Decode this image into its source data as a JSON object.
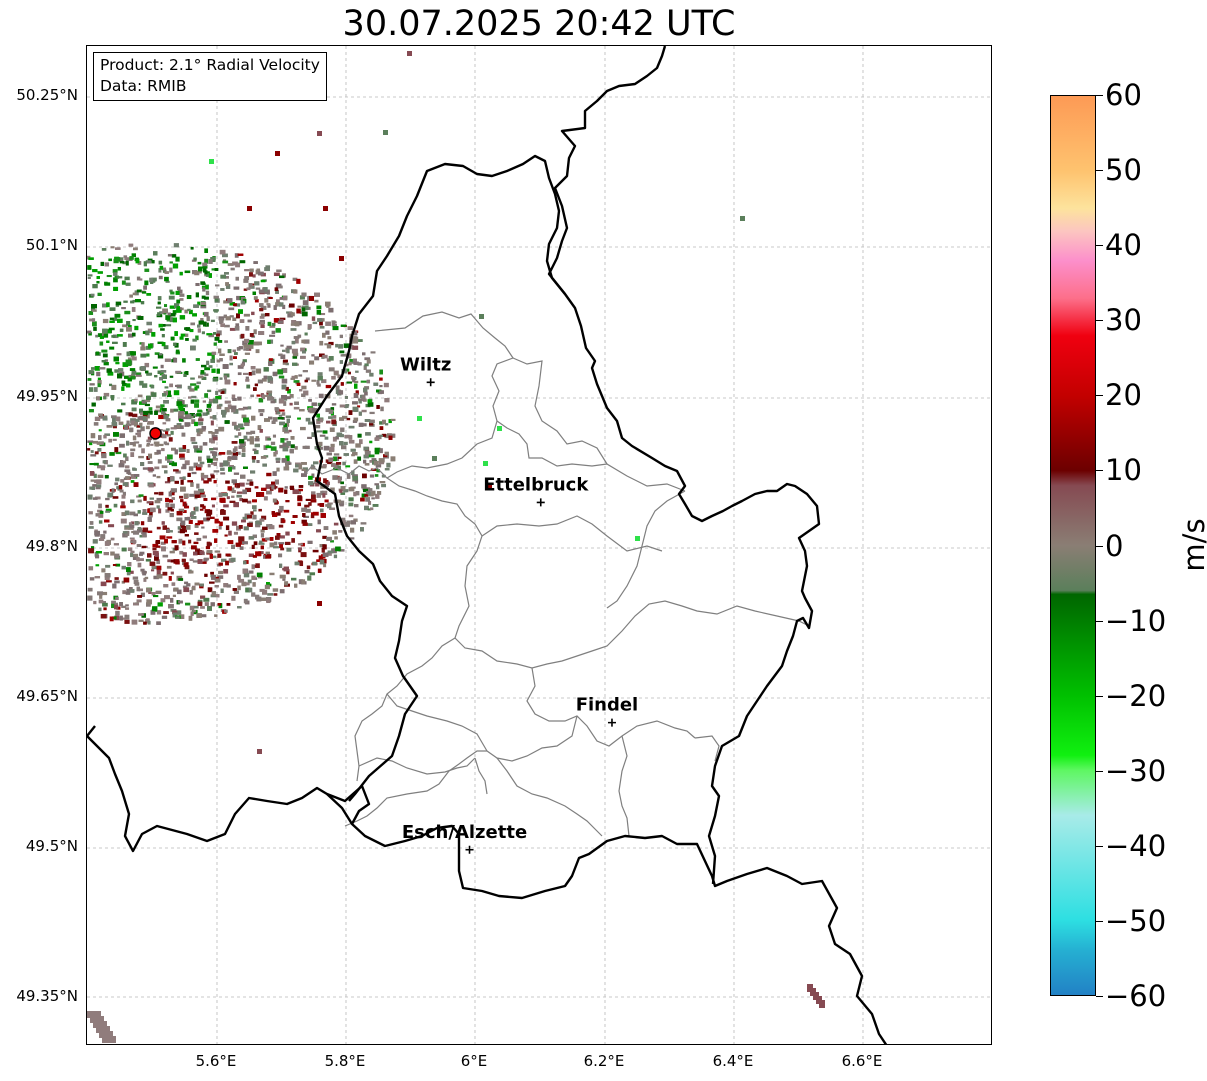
{
  "title": "30.07.2025 20:42 UTC",
  "info_box": {
    "product": "Product: 2.1° Radial Velocity",
    "data": "Data: RMIB"
  },
  "lat_labels": [
    "50.25°N",
    "50.1°N",
    "49.95°N",
    "49.8°N",
    "49.65°N",
    "49.5°N",
    "49.35°N"
  ],
  "lon_labels": [
    "5.6°E",
    "5.8°E",
    "6°E",
    "6.2°E",
    "6.4°E",
    "6.6°E"
  ],
  "cities": [
    {
      "name": "Wiltz",
      "lon": 5.93,
      "lat": 49.965
    },
    {
      "name": "Ettelbruck",
      "lon": 6.1,
      "lat": 49.845
    },
    {
      "name": "Findel",
      "lon": 6.21,
      "lat": 49.625
    },
    {
      "name": "Esch/Alzette",
      "lon": 5.99,
      "lat": 49.498
    }
  ],
  "radar_site": {
    "lon": 5.505,
    "lat": 49.914
  },
  "colorbar": {
    "unit": "m/s",
    "min": -60,
    "max": 60,
    "ticks": [
      "60",
      "50",
      "40",
      "30",
      "20",
      "10",
      "0",
      "−10",
      "−20",
      "−30",
      "−40",
      "−50",
      "−60"
    ],
    "stops": [
      {
        "v": 60,
        "color": "#fd9a55"
      },
      {
        "v": 50,
        "color": "#fec36f"
      },
      {
        "v": 45,
        "color": "#fde39d"
      },
      {
        "v": 42,
        "color": "#fcc6c0"
      },
      {
        "v": 38,
        "color": "#fc8fcb"
      },
      {
        "v": 33,
        "color": "#fd6f8a"
      },
      {
        "v": 28,
        "color": "#f00010"
      },
      {
        "v": 20,
        "color": "#c30000"
      },
      {
        "v": 10,
        "color": "#6c0000"
      },
      {
        "v": 8,
        "color": "#864a52"
      },
      {
        "v": 0,
        "color": "#8a7e74"
      },
      {
        "v": -6,
        "color": "#5b7f5b"
      },
      {
        "v": -6.5,
        "color": "#006600"
      },
      {
        "v": -20,
        "color": "#00c000"
      },
      {
        "v": -28,
        "color": "#10f010"
      },
      {
        "v": -30,
        "color": "#5ef762"
      },
      {
        "v": -36,
        "color": "#a8ebe8"
      },
      {
        "v": -50,
        "color": "#2ddfe2"
      },
      {
        "v": -54,
        "color": "#25b0d2"
      },
      {
        "v": -60,
        "color": "#2281c5"
      }
    ]
  }
}
